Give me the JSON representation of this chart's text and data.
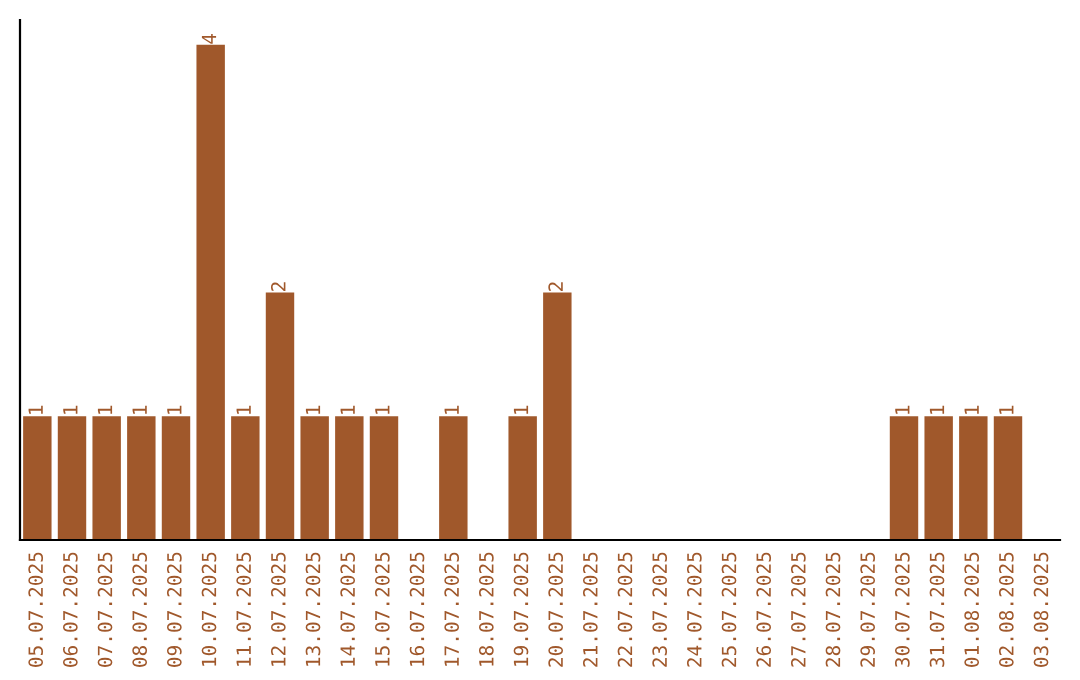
{
  "chart_data": {
    "type": "bar",
    "categories": [
      "05.07.2025",
      "06.07.2025",
      "07.07.2025",
      "08.07.2025",
      "09.07.2025",
      "10.07.2025",
      "11.07.2025",
      "12.07.2025",
      "13.07.2025",
      "14.07.2025",
      "15.07.2025",
      "16.07.2025",
      "17.07.2025",
      "18.07.2025",
      "19.07.2025",
      "20.07.2025",
      "21.07.2025",
      "22.07.2025",
      "23.07.2025",
      "24.07.2025",
      "25.07.2025",
      "26.07.2025",
      "27.07.2025",
      "28.07.2025",
      "29.07.2025",
      "30.07.2025",
      "31.07.2025",
      "01.08.2025",
      "02.08.2025",
      "03.08.2025"
    ],
    "values": [
      1,
      1,
      1,
      1,
      1,
      4,
      1,
      2,
      1,
      1,
      1,
      0,
      1,
      0,
      1,
      2,
      0,
      0,
      0,
      0,
      0,
      0,
      0,
      0,
      0,
      1,
      1,
      1,
      1,
      0
    ],
    "value_labels": [
      "1",
      "1",
      "1",
      "1",
      "1",
      "4",
      "1",
      "2",
      "1",
      "1",
      "1",
      null,
      "1",
      null,
      "1",
      "2",
      null,
      null,
      null,
      null,
      null,
      null,
      null,
      null,
      null,
      "1",
      "1",
      "1",
      "1",
      null
    ],
    "color": "#a0582b",
    "ylim": [
      0,
      4.2
    ],
    "tick_labels": "x",
    "grid": false
  }
}
